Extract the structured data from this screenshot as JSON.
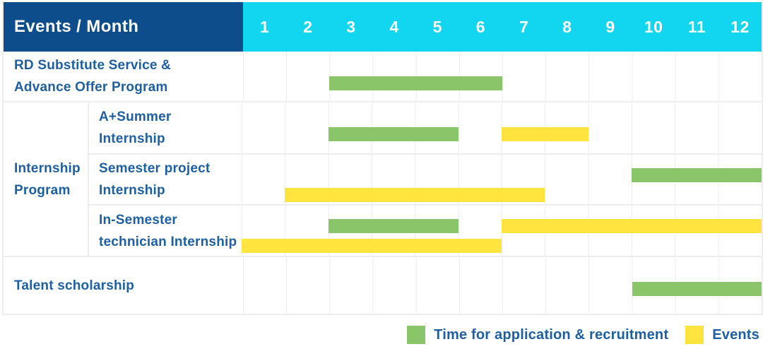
{
  "header": {
    "title": "Events / Month",
    "months": [
      "1",
      "2",
      "3",
      "4",
      "5",
      "6",
      "7",
      "8",
      "9",
      "10",
      "11",
      "12"
    ]
  },
  "groups": [
    {
      "label": "Internship Program",
      "label_lines": [
        "Internship",
        "Program"
      ]
    }
  ],
  "colors": {
    "header_bg": "#0d4d8c",
    "months_bg": "#12d6f0",
    "label_text": "#1d5fa3",
    "application": "#8ac56a",
    "event": "#ffe440",
    "gridline": "#ececec"
  },
  "chart_data": {
    "type": "gantt",
    "unit": "month",
    "x_ticks": [
      "1",
      "2",
      "3",
      "4",
      "5",
      "6",
      "7",
      "8",
      "9",
      "10",
      "11",
      "12"
    ],
    "x_range": [
      1,
      12
    ],
    "grid": true,
    "legend_position": "bottom-right",
    "rows": [
      {
        "group": "",
        "label": "RD Substitute Service & Advance Offer Program",
        "label_lines": [
          "RD Substitute Service &",
          "Advance Offer Program"
        ],
        "bars": [
          {
            "kind": "application",
            "start_month": 3,
            "end_month": 6,
            "band": "single"
          }
        ]
      },
      {
        "group": "Internship Program",
        "label": "A+Summer Internship",
        "label_lines": [
          "A+Summer",
          "Internship"
        ],
        "bars": [
          {
            "kind": "application",
            "start_month": 3,
            "end_month": 5,
            "band": "single"
          },
          {
            "kind": "event",
            "start_month": 7,
            "end_month": 8,
            "band": "single"
          }
        ]
      },
      {
        "group": "Internship Program",
        "label": "Semester project Internship",
        "label_lines": [
          "Semester project",
          "Internship"
        ],
        "bars": [
          {
            "kind": "application",
            "start_month": 10,
            "end_month": 12,
            "band": "upper"
          },
          {
            "kind": "event",
            "start_month": 2,
            "end_month": 7,
            "band": "lower"
          }
        ]
      },
      {
        "group": "Internship Program",
        "label": "In-Semester technician Internship",
        "label_lines": [
          "In-Semester",
          "technician Internship"
        ],
        "bars": [
          {
            "kind": "application",
            "start_month": 3,
            "end_month": 5,
            "band": "upper"
          },
          {
            "kind": "event",
            "start_month": 7,
            "end_month": 12,
            "band": "upper"
          },
          {
            "kind": "event",
            "start_month": 1,
            "end_month": 6,
            "band": "lower"
          }
        ]
      },
      {
        "group": "",
        "label": "Talent scholarship",
        "label_lines": [
          "Talent scholarship"
        ],
        "bars": [
          {
            "kind": "application",
            "start_month": 10,
            "end_month": 12,
            "band": "single"
          }
        ]
      }
    ],
    "legend": [
      {
        "kind": "application",
        "label": "Time for application & recruitment"
      },
      {
        "kind": "event",
        "label": "Events"
      }
    ]
  }
}
